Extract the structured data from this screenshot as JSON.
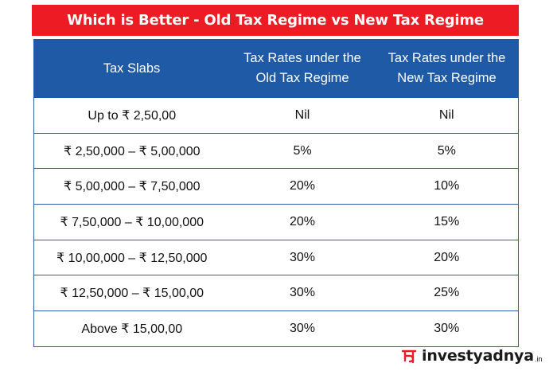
{
  "title": "Which is Better - Old Tax Regime vs New Tax Regime",
  "colors": {
    "title_bg": "#ed1c24",
    "header_bg": "#1f5aa6",
    "border": "#2f5fa8",
    "logo_accent": "#ed1c24"
  },
  "table": {
    "headers": [
      "Tax Slabs",
      "Tax Rates under the Old Tax Regime",
      "Tax Rates under the New Tax Regime"
    ],
    "rows": [
      {
        "slab": "Up to ₹ 2,50,00",
        "old": "Nil",
        "new": "Nil"
      },
      {
        "slab": "₹ 2,50,000 – ₹ 5,00,000",
        "old": "5%",
        "new": "5%"
      },
      {
        "slab": "₹ 5,00,000 – ₹ 7,50,000",
        "old": "20%",
        "new": "10%"
      },
      {
        "slab": "₹ 7,50,000 – ₹ 10,00,000",
        "old": "20%",
        "new": "15%"
      },
      {
        "slab": "₹ 10,00,000 – ₹ 12,50,000",
        "old": "30%",
        "new": "20%"
      },
      {
        "slab": "₹ 12,50,000 – ₹ 15,00,00",
        "old": "30%",
        "new": "25%"
      },
      {
        "slab": "Above ₹ 15,00,00",
        "old": "30%",
        "new": "30%"
      }
    ]
  },
  "logo": {
    "text": "investyadnya",
    "tld": ".in",
    "icon": "yadnya-logo-icon"
  }
}
